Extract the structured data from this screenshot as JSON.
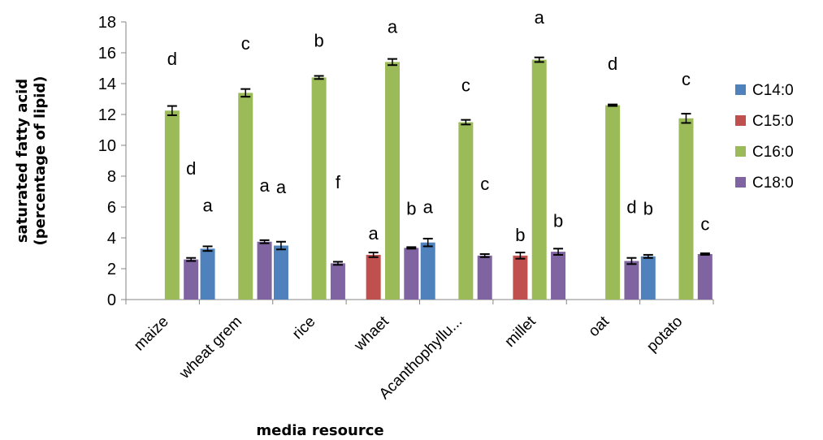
{
  "chart_data": {
    "type": "bar",
    "categories": [
      "maize",
      "wheat grem",
      "rice",
      "whaet",
      "Acanthophyllu...",
      "millet",
      "oat",
      "potato"
    ],
    "series": [
      {
        "name": "C14:0",
        "color": "#4F81BD",
        "values": [
          null,
          3.3,
          3.5,
          null,
          3.7,
          null,
          null,
          2.8
        ],
        "errors": [
          null,
          0.15,
          0.25,
          null,
          0.25,
          null,
          null,
          0.1
        ]
      },
      {
        "name": "C15:0",
        "color": "#C0504D",
        "values": [
          null,
          null,
          null,
          2.9,
          null,
          2.85,
          null,
          null
        ],
        "errors": [
          null,
          null,
          null,
          0.15,
          null,
          0.2,
          null,
          null
        ]
      },
      {
        "name": "C16:0",
        "color": "#9BBB59",
        "values": [
          12.25,
          13.4,
          14.4,
          15.4,
          11.5,
          15.55,
          12.6,
          11.75
        ],
        "errors": [
          0.3,
          0.25,
          0.1,
          0.2,
          0.15,
          0.15,
          0.05,
          0.3
        ]
      },
      {
        "name": "C18:0",
        "color": "#8064A2",
        "values": [
          2.6,
          3.75,
          2.35,
          3.35,
          2.85,
          3.1,
          2.5,
          2.95
        ],
        "errors": [
          0.1,
          0.1,
          0.1,
          0.05,
          0.1,
          0.2,
          0.2,
          0.05
        ]
      }
    ],
    "annotations": [
      {
        "text": "d",
        "category": "maize",
        "series": "C16:0",
        "value": 15.2
      },
      {
        "text": "d",
        "category": "maize",
        "series": "C18:0",
        "value": 8.1
      },
      {
        "text": "c",
        "category": "wheat grem",
        "series": "C16:0",
        "value": 16.2
      },
      {
        "text": "a",
        "category": "wheat grem",
        "series": "C14:0",
        "value": 5.7
      },
      {
        "text": "a",
        "category": "wheat grem",
        "series": "C18:0",
        "value": 7.0
      },
      {
        "text": "b",
        "category": "rice",
        "series": "C16:0",
        "value": 16.4
      },
      {
        "text": "a",
        "category": "rice",
        "series": "C14:0",
        "value": 6.9
      },
      {
        "text": "f",
        "category": "rice",
        "series": "C18:0",
        "value": 7.2
      },
      {
        "text": "a",
        "category": "whaet",
        "series": "C16:0",
        "value": 17.3
      },
      {
        "text": "a",
        "category": "whaet",
        "series": "C15:0",
        "value": 3.9
      },
      {
        "text": "b",
        "category": "whaet",
        "series": "C18:0",
        "value": 5.5
      },
      {
        "text": "c",
        "category": "Acanthophyllu...",
        "series": "C16:0",
        "value": 13.5
      },
      {
        "text": "a",
        "category": "Acanthophyllu...",
        "series": "C14:0",
        "value": 5.6
      },
      {
        "text": "c",
        "category": "Acanthophyllu...",
        "series": "C18:0",
        "value": 7.1
      },
      {
        "text": "a",
        "category": "millet",
        "series": "C16:0",
        "value": 17.9
      },
      {
        "text": "b",
        "category": "millet",
        "series": "C15:0",
        "value": 3.8
      },
      {
        "text": "b",
        "category": "millet",
        "series": "C18:0",
        "value": 4.7
      },
      {
        "text": "d",
        "category": "oat",
        "series": "C16:0",
        "value": 14.9
      },
      {
        "text": "d",
        "category": "oat",
        "series": "C18:0",
        "value": 5.6
      },
      {
        "text": "b",
        "category": "potato",
        "series": "C14:0",
        "value": 5.5
      },
      {
        "text": "c",
        "category": "potato",
        "series": "C16:0",
        "value": 13.9
      },
      {
        "text": "c",
        "category": "potato",
        "series": "C18:0",
        "value": 4.5
      }
    ],
    "ylabel": "saturated fatty acid (percentage of lipid)",
    "ylabel_lines": [
      "saturated fatty acid",
      "(percentage of lipid)"
    ],
    "xlabel": "media resource",
    "ylim": [
      0,
      18
    ],
    "yticks": [
      0,
      2,
      4,
      6,
      8,
      10,
      12,
      14,
      16,
      18
    ],
    "grid": false,
    "legend_position": "right"
  }
}
